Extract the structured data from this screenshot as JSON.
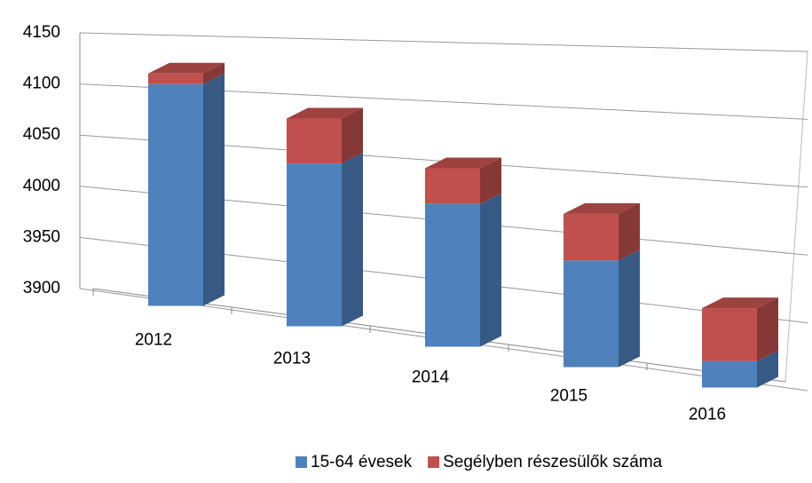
{
  "chart_data": {
    "type": "bar3d_stacked",
    "categories": [
      "2012",
      "2013",
      "2014",
      "2015",
      "2016"
    ],
    "series": [
      {
        "name": "15-64 évesek",
        "color": "#4f81bd",
        "values": [
          4110,
          4045,
          4020,
          3985,
          3920
        ]
      },
      {
        "name": "Segélyben részesülők száma",
        "color": "#c0504d",
        "values": [
          10,
          40,
          30,
          37,
          40
        ]
      }
    ],
    "ylim": [
      3900,
      4150
    ],
    "yticks": [
      3900,
      3950,
      4000,
      4050,
      4100,
      4150
    ],
    "grid": true,
    "legend": "bottom"
  }
}
